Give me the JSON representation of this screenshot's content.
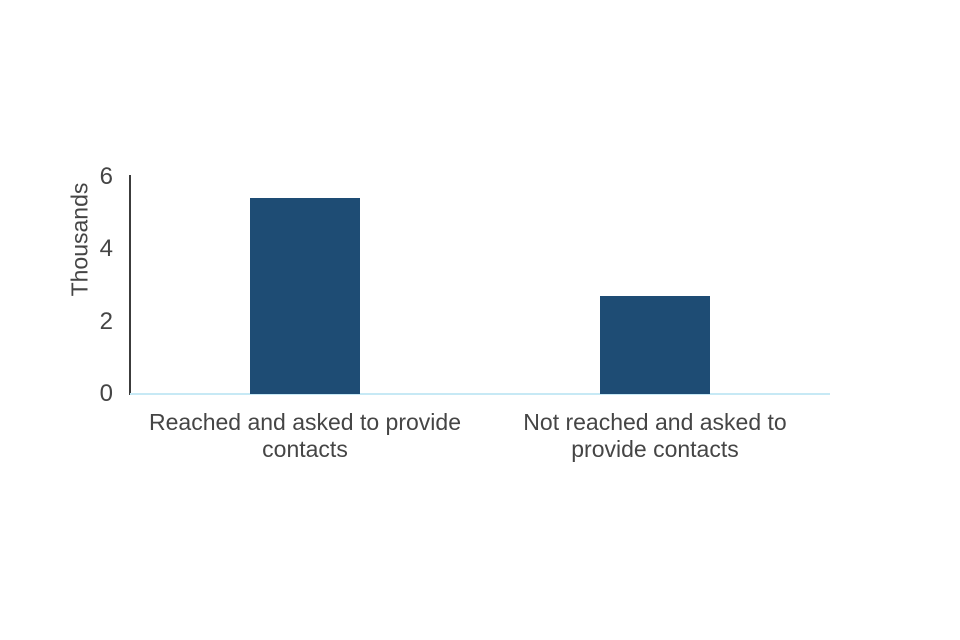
{
  "chart_data": {
    "type": "bar",
    "title": "",
    "categories": [
      "Reached and asked to provide contacts",
      "Not reached and asked to provide contacts"
    ],
    "category_label_lines": [
      [
        "Reached and asked to provide",
        "contacts"
      ],
      [
        "Not reached and asked to",
        "provide contacts"
      ]
    ],
    "values": [
      5.4,
      2.7
    ],
    "ylabel": "Thousands",
    "xlabel": "",
    "ylim": [
      0,
      6
    ],
    "yticks": [
      0,
      2,
      4,
      6
    ],
    "grid": false,
    "legend": false,
    "bar_color": "#1e4c74",
    "y_axis_line_color": "#3c3c3c",
    "baseline_color": "#c7e9f5",
    "text_color": "#454545",
    "background_color": "#ffffff"
  }
}
